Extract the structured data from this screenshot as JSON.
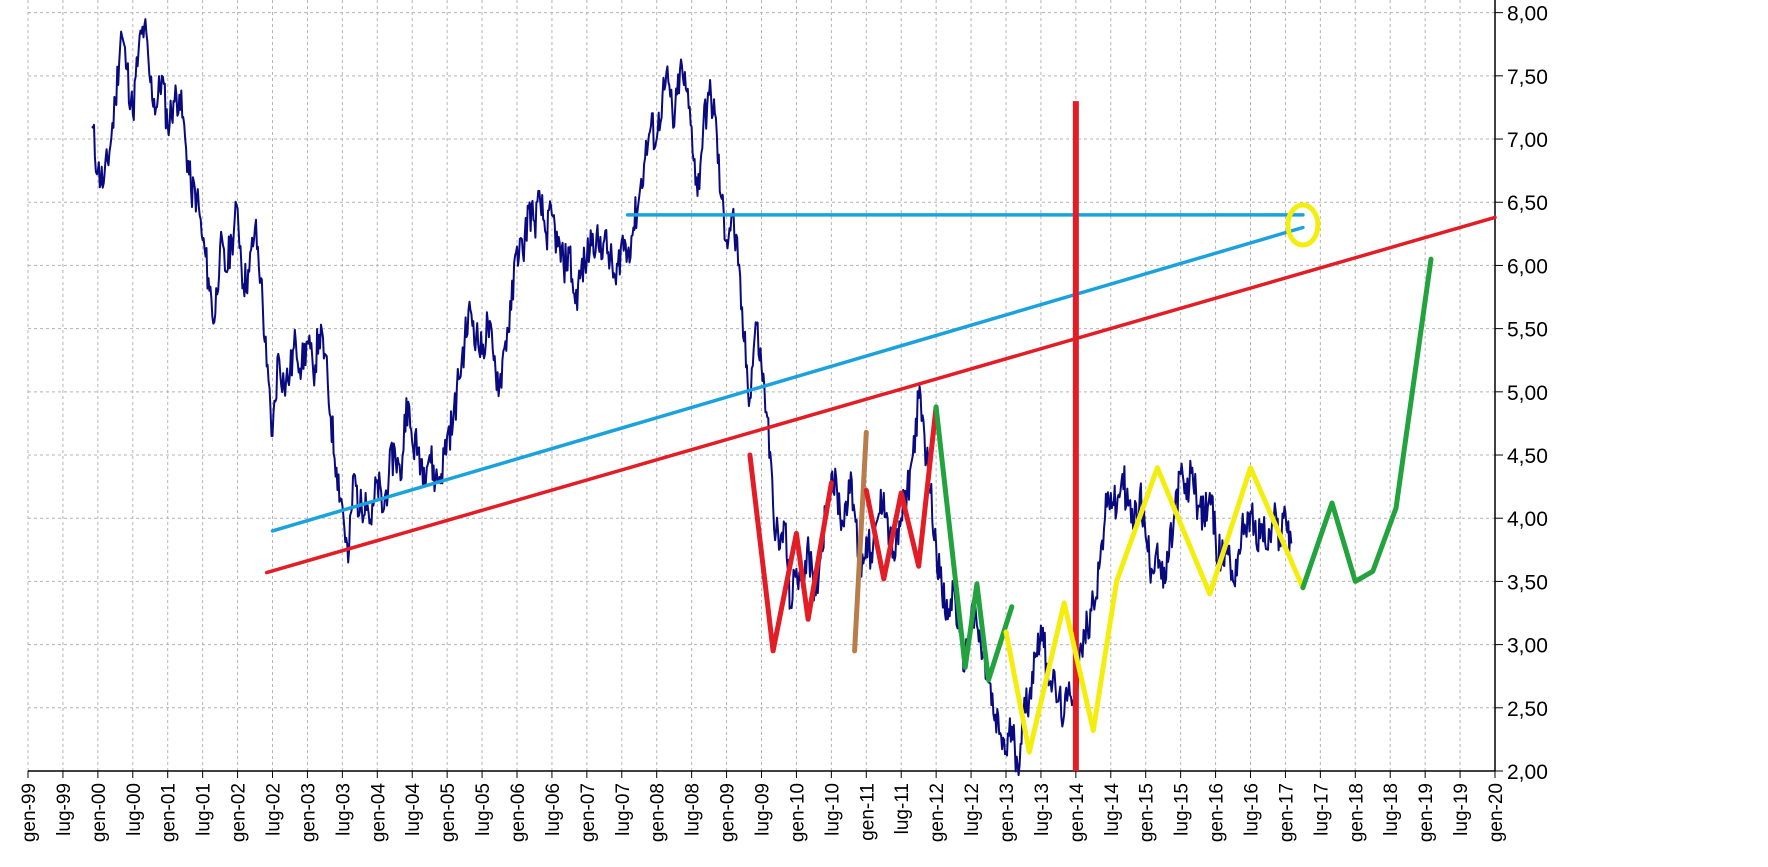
{
  "chart_data": {
    "type": "line",
    "title": "",
    "xlabel": "",
    "ylabel": "",
    "x_axis": {
      "type": "date",
      "ticks": [
        "gen-99",
        "lug-99",
        "gen-00",
        "lug-00",
        "gen-01",
        "lug-01",
        "gen-02",
        "lug-02",
        "gen-03",
        "lug-03",
        "gen-04",
        "lug-04",
        "gen-05",
        "lug-05",
        "gen-06",
        "lug-06",
        "gen-07",
        "lug-07",
        "gen-08",
        "lug-08",
        "gen-09",
        "lug-09",
        "gen-10",
        "lug-10",
        "gen-11",
        "lug-11",
        "gen-12",
        "lug-12",
        "gen-13",
        "lug-13",
        "gen-14",
        "lug-14",
        "gen-15",
        "lug-15",
        "gen-16",
        "lug-16",
        "gen-17",
        "lug-17",
        "gen-18",
        "lug-18",
        "gen-19",
        "lug-19",
        "gen-20"
      ],
      "xlim": [
        "1999-01",
        "2020-01"
      ]
    },
    "y_axis": {
      "ticks": [
        "2,00",
        "2,50",
        "3,00",
        "3,50",
        "4,00",
        "4,50",
        "5,00",
        "5,50",
        "6,00",
        "6,50",
        "7,00",
        "7,50",
        "8,00"
      ],
      "ylim": [
        2.0,
        8.1
      ],
      "position": "right"
    },
    "grid": true,
    "colors": {
      "price": "#0a0a80",
      "red": "#e21d25",
      "blue": "#1ba2dd",
      "green": "#22a33d",
      "yellow": "#f4ee0e",
      "brown": "#b87d4b",
      "grid": "#b4b4b4"
    },
    "series": [
      {
        "color": "price",
        "points": [
          [
            "1999-12",
            7.1
          ],
          [
            "2000-01",
            6.75
          ],
          [
            "2000-02",
            6.65
          ],
          [
            "2000-03",
            6.9
          ],
          [
            "2000-04",
            7.3
          ],
          [
            "2000-05",
            7.85
          ],
          [
            "2000-06",
            7.55
          ],
          [
            "2000-07",
            7.2
          ],
          [
            "2000-08",
            7.7
          ],
          [
            "2000-09",
            7.9
          ],
          [
            "2000-10",
            7.45
          ],
          [
            "2000-11",
            7.25
          ],
          [
            "2000-12",
            7.5
          ],
          [
            "2001-01",
            7.1
          ],
          [
            "2001-02",
            7.3
          ],
          [
            "2001-03",
            7.35
          ],
          [
            "2001-04",
            7.0
          ],
          [
            "2001-05",
            6.6
          ],
          [
            "2001-06",
            6.55
          ],
          [
            "2001-07",
            6.2
          ],
          [
            "2001-08",
            5.9
          ],
          [
            "2001-09",
            5.55
          ],
          [
            "2001-10",
            6.15
          ],
          [
            "2001-11",
            5.95
          ],
          [
            "2001-12",
            6.2
          ],
          [
            "2002-01",
            6.45
          ],
          [
            "2002-02",
            5.85
          ],
          [
            "2002-03",
            5.95
          ],
          [
            "2002-04",
            6.3
          ],
          [
            "2002-05",
            5.9
          ],
          [
            "2002-06",
            5.2
          ],
          [
            "2002-07",
            4.65
          ],
          [
            "2002-08",
            5.3
          ],
          [
            "2002-09",
            5.05
          ],
          [
            "2002-10",
            5.15
          ],
          [
            "2002-11",
            5.4
          ],
          [
            "2002-12",
            5.2
          ],
          [
            "2003-01",
            5.4
          ],
          [
            "2003-02",
            5.15
          ],
          [
            "2003-03",
            5.45
          ],
          [
            "2003-04",
            5.3
          ],
          [
            "2003-05",
            4.8
          ],
          [
            "2003-06",
            4.4
          ],
          [
            "2003-07",
            4.1
          ],
          [
            "2003-08",
            3.65
          ],
          [
            "2003-09",
            4.35
          ],
          [
            "2003-10",
            4.05
          ],
          [
            "2003-11",
            4.2
          ],
          [
            "2003-12",
            3.95
          ],
          [
            "2004-01",
            4.3
          ],
          [
            "2004-02",
            4.05
          ],
          [
            "2004-03",
            4.35
          ],
          [
            "2004-04",
            4.55
          ],
          [
            "2004-05",
            4.3
          ],
          [
            "2004-06",
            4.95
          ],
          [
            "2004-07",
            4.6
          ],
          [
            "2004-08",
            4.55
          ],
          [
            "2004-09",
            4.4
          ],
          [
            "2004-10",
            4.5
          ],
          [
            "2004-11",
            4.3
          ],
          [
            "2004-12",
            4.35
          ],
          [
            "2005-01",
            4.65
          ],
          [
            "2005-02",
            4.75
          ],
          [
            "2005-03",
            5.1
          ],
          [
            "2005-04",
            5.4
          ],
          [
            "2005-05",
            5.65
          ],
          [
            "2005-06",
            5.45
          ],
          [
            "2005-07",
            5.3
          ],
          [
            "2005-08",
            5.55
          ],
          [
            "2005-09",
            5.25
          ],
          [
            "2005-10",
            5.05
          ],
          [
            "2005-11",
            5.4
          ],
          [
            "2005-12",
            5.65
          ],
          [
            "2006-01",
            6.15
          ],
          [
            "2006-02",
            6.1
          ],
          [
            "2006-03",
            6.45
          ],
          [
            "2006-04",
            6.35
          ],
          [
            "2006-05",
            6.5
          ],
          [
            "2006-06",
            6.25
          ],
          [
            "2006-07",
            6.4
          ],
          [
            "2006-08",
            6.15
          ],
          [
            "2006-09",
            6.0
          ],
          [
            "2006-10",
            6.1
          ],
          [
            "2006-11",
            5.7
          ],
          [
            "2006-12",
            5.95
          ],
          [
            "2007-01",
            6.05
          ],
          [
            "2007-02",
            6.25
          ],
          [
            "2007-03",
            6.15
          ],
          [
            "2007-04",
            6.2
          ],
          [
            "2007-05",
            6.05
          ],
          [
            "2007-06",
            5.85
          ],
          [
            "2007-07",
            6.2
          ],
          [
            "2007-08",
            6.1
          ],
          [
            "2007-09",
            6.3
          ],
          [
            "2007-10",
            6.55
          ],
          [
            "2007-11",
            6.85
          ],
          [
            "2007-12",
            7.1
          ],
          [
            "2008-01",
            7.0
          ],
          [
            "2008-02",
            7.35
          ],
          [
            "2008-03",
            7.45
          ],
          [
            "2008-04",
            7.1
          ],
          [
            "2008-05",
            7.55
          ],
          [
            "2008-06",
            7.4
          ],
          [
            "2008-07",
            7.1
          ],
          [
            "2008-08",
            6.55
          ],
          [
            "2008-09",
            7.1
          ],
          [
            "2008-10",
            7.35
          ],
          [
            "2008-11",
            7.2
          ],
          [
            "2008-12",
            6.55
          ],
          [
            "2009-01",
            6.2
          ],
          [
            "2009-02",
            6.4
          ],
          [
            "2009-03",
            6.0
          ],
          [
            "2009-04",
            5.4
          ],
          [
            "2009-05",
            4.95
          ],
          [
            "2009-06",
            5.55
          ],
          [
            "2009-07",
            5.2
          ],
          [
            "2009-08",
            4.8
          ],
          [
            "2009-09",
            4.1
          ],
          [
            "2009-10",
            3.75
          ],
          [
            "2009-11",
            3.95
          ],
          [
            "2009-12",
            3.3
          ],
          [
            "2010-01",
            3.6
          ],
          [
            "2010-02",
            3.45
          ],
          [
            "2010-03",
            3.85
          ],
          [
            "2010-04",
            3.35
          ],
          [
            "2010-05",
            3.65
          ],
          [
            "2010-06",
            4.05
          ],
          [
            "2010-07",
            4.35
          ],
          [
            "2010-08",
            4.2
          ],
          [
            "2010-09",
            3.95
          ],
          [
            "2010-10",
            4.3
          ],
          [
            "2010-11",
            4.05
          ],
          [
            "2010-12",
            3.55
          ],
          [
            "2011-01",
            3.85
          ],
          [
            "2011-02",
            3.65
          ],
          [
            "2011-03",
            4.0
          ],
          [
            "2011-04",
            4.2
          ],
          [
            "2011-05",
            3.85
          ],
          [
            "2011-06",
            3.7
          ],
          [
            "2011-07",
            4.0
          ],
          [
            "2011-08",
            4.2
          ],
          [
            "2011-09",
            4.5
          ],
          [
            "2011-10",
            4.95
          ],
          [
            "2011-11",
            4.65
          ],
          [
            "2011-12",
            4.2
          ],
          [
            "2012-01",
            3.8
          ],
          [
            "2012-02",
            3.4
          ],
          [
            "2012-03",
            3.2
          ],
          [
            "2012-04",
            3.45
          ],
          [
            "2012-05",
            3.1
          ],
          [
            "2012-06",
            2.85
          ],
          [
            "2012-07",
            3.25
          ],
          [
            "2012-08",
            3.15
          ],
          [
            "2012-09",
            2.9
          ],
          [
            "2012-10",
            2.7
          ],
          [
            "2012-11",
            2.4
          ],
          [
            "2012-12",
            2.3
          ],
          [
            "2013-01",
            2.15
          ],
          [
            "2013-02",
            2.35
          ],
          [
            "2013-03",
            2.05
          ],
          [
            "2013-04",
            2.45
          ],
          [
            "2013-05",
            2.6
          ],
          [
            "2013-06",
            2.9
          ],
          [
            "2013-07",
            3.15
          ],
          [
            "2013-08",
            2.85
          ],
          [
            "2013-09",
            2.7
          ],
          [
            "2013-10",
            2.55
          ],
          [
            "2013-11",
            2.45
          ],
          [
            "2013-12",
            2.6
          ],
          [
            "2014-01",
            2.7
          ],
          [
            "2014-02",
            2.95
          ],
          [
            "2014-03",
            3.15
          ],
          [
            "2014-04",
            3.35
          ],
          [
            "2014-05",
            3.6
          ],
          [
            "2014-06",
            4.0
          ],
          [
            "2014-07",
            4.2
          ],
          [
            "2014-08",
            4.05
          ],
          [
            "2014-09",
            4.35
          ],
          [
            "2014-10",
            4.1
          ],
          [
            "2014-11",
            3.95
          ],
          [
            "2014-12",
            4.2
          ],
          [
            "2015-01",
            3.85
          ],
          [
            "2015-02",
            3.6
          ],
          [
            "2015-03",
            3.8
          ],
          [
            "2015-04",
            3.45
          ],
          [
            "2015-05",
            3.7
          ],
          [
            "2015-06",
            4.05
          ],
          [
            "2015-07",
            4.35
          ],
          [
            "2015-08",
            4.15
          ],
          [
            "2015-09",
            4.4
          ],
          [
            "2015-10",
            4.1
          ],
          [
            "2015-11",
            4.0
          ],
          [
            "2015-12",
            4.2
          ],
          [
            "2016-01",
            3.85
          ],
          [
            "2016-02",
            3.65
          ],
          [
            "2016-03",
            3.8
          ],
          [
            "2016-04",
            3.5
          ],
          [
            "2016-05",
            3.75
          ],
          [
            "2016-06",
            3.95
          ],
          [
            "2016-07",
            4.05
          ],
          [
            "2016-08",
            3.8
          ],
          [
            "2016-09",
            3.95
          ],
          [
            "2016-10",
            3.75
          ],
          [
            "2016-11",
            4.0
          ],
          [
            "2016-12",
            3.85
          ],
          [
            "2017-01",
            4.05
          ],
          [
            "2017-02",
            3.8
          ]
        ]
      }
    ],
    "annotations": {
      "red_trendline": [
        [
          "2002-06",
          3.57
        ],
        [
          "2020-01",
          6.38
        ]
      ],
      "blue_trendline": [
        [
          "2002-07",
          3.9
        ],
        [
          "2017-04",
          6.3
        ]
      ],
      "blue_horizontal": [
        [
          "2007-08",
          6.4
        ],
        [
          "2017-04",
          6.4
        ]
      ],
      "red_vertical": {
        "x": "2014-01",
        "y": [
          2.0,
          7.3
        ]
      },
      "yellow_circle": {
        "x": "2017-04",
        "y": 6.32
      },
      "red_zigzag": [
        [
          "2009-05",
          4.5
        ],
        [
          "2009-09",
          2.95
        ],
        [
          "2010-01",
          3.88
        ],
        [
          "2010-03",
          3.2
        ],
        [
          "2010-07",
          4.28
        ]
      ],
      "brown_segment": [
        [
          "2010-11",
          2.95
        ],
        [
          "2011-01",
          4.68
        ]
      ],
      "red_zigzag_2": [
        [
          "2011-01",
          4.22
        ],
        [
          "2011-04",
          3.52
        ],
        [
          "2011-07",
          4.2
        ],
        [
          "2011-10",
          3.62
        ],
        [
          "2012-01",
          4.88
        ]
      ],
      "green_zigzag": [
        [
          "2012-01",
          4.88
        ],
        [
          "2012-06",
          2.82
        ],
        [
          "2012-08",
          3.48
        ],
        [
          "2012-10",
          2.72
        ],
        [
          "2013-02",
          3.3
        ]
      ],
      "yellow_zigzag": [
        [
          "2013-01",
          3.1
        ],
        [
          "2013-05",
          2.15
        ],
        [
          "2013-11",
          3.33
        ],
        [
          "2014-04",
          2.32
        ],
        [
          "2014-08",
          3.5
        ],
        [
          "2015-03",
          4.4
        ],
        [
          "2015-12",
          3.4
        ],
        [
          "2016-07",
          4.4
        ],
        [
          "2017-04",
          3.45
        ]
      ],
      "green_zigzag_2": [
        [
          "2017-04",
          3.45
        ],
        [
          "2017-09",
          4.12
        ],
        [
          "2018-01",
          3.5
        ],
        [
          "2018-04",
          3.58
        ],
        [
          "2018-08",
          4.08
        ],
        [
          "2019-02",
          6.05
        ]
      ]
    }
  }
}
